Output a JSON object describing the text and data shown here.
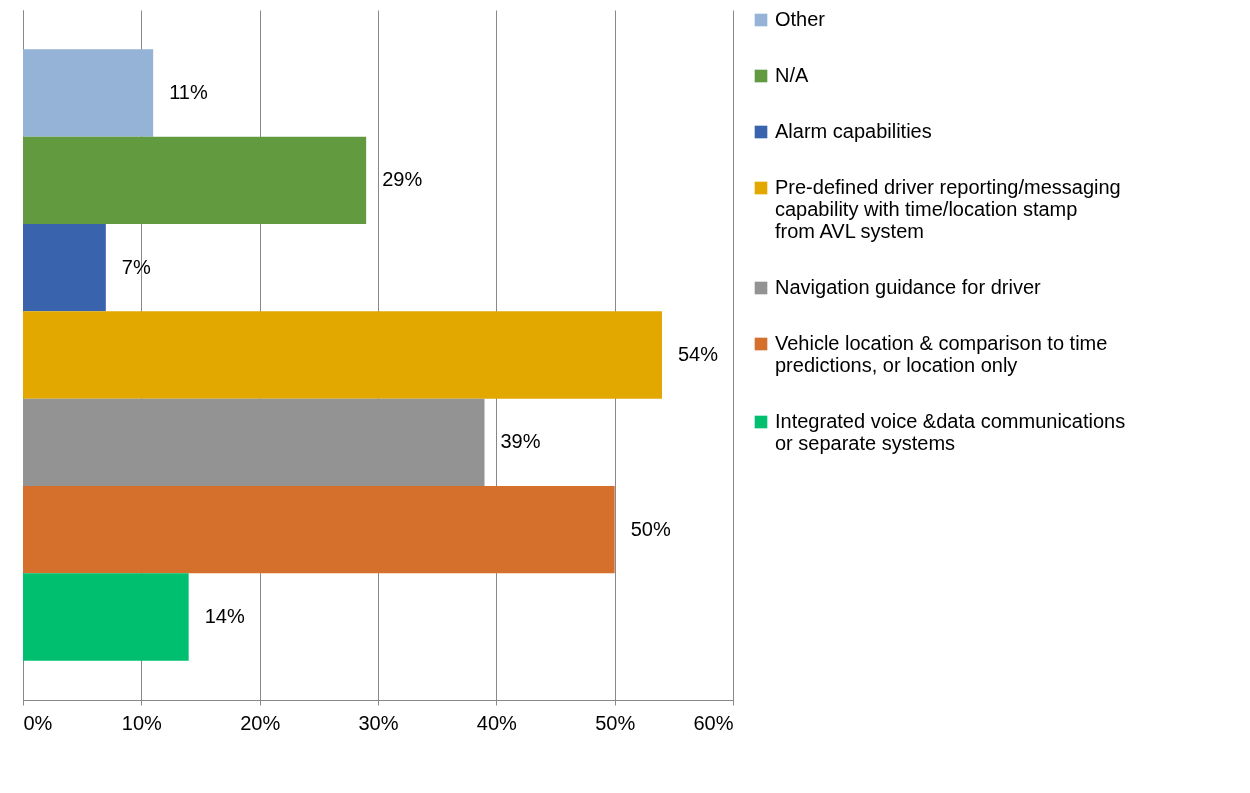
{
  "chart_data": {
    "type": "bar",
    "orientation": "horizontal",
    "categories": [
      null,
      null,
      null,
      null,
      null,
      null,
      null
    ],
    "series": [
      {
        "name": "Other",
        "color": "#95b3d7",
        "values": [
          11,
          null,
          null,
          null,
          null,
          null,
          null
        ],
        "value_labels": [
          "11%",
          null,
          null,
          null,
          null,
          null,
          null
        ]
      },
      {
        "name": "N/A",
        "color": "#629a3f",
        "values": [
          null,
          29,
          null,
          null,
          null,
          null,
          null
        ],
        "value_labels": [
          null,
          "29%",
          null,
          null,
          null,
          null,
          null
        ]
      },
      {
        "name": "Alarm capabilities",
        "color": "#3a63ad",
        "values": [
          null,
          null,
          7,
          null,
          null,
          null,
          null
        ],
        "value_labels": [
          null,
          null,
          "7%",
          null,
          null,
          null,
          null
        ]
      },
      {
        "name": "Pre-defined driver reporting/messaging capability with time/location stamp from AVL system",
        "color": "#e2a800",
        "values": [
          null,
          null,
          null,
          54,
          null,
          null,
          null
        ],
        "value_labels": [
          null,
          null,
          null,
          "54%",
          null,
          null,
          null
        ]
      },
      {
        "name": "Navigation guidance for driver",
        "color": "#939393",
        "values": [
          null,
          null,
          null,
          null,
          39,
          null,
          null
        ],
        "value_labels": [
          null,
          null,
          null,
          null,
          "39%",
          null,
          null
        ]
      },
      {
        "name": "Vehicle location & comparison to time predictions, or location only",
        "color": "#d46f2c",
        "values": [
          null,
          null,
          null,
          null,
          null,
          50,
          null
        ],
        "value_labels": [
          null,
          null,
          null,
          null,
          null,
          "50%",
          null
        ]
      },
      {
        "name": "Integrated voice &data communications or separate systems",
        "color": "#00bf6f",
        "values": [
          null,
          null,
          null,
          null,
          null,
          null,
          14
        ],
        "value_labels": [
          null,
          null,
          null,
          null,
          null,
          null,
          "14%"
        ]
      }
    ],
    "xlim": [
      0,
      60
    ],
    "xticks": [
      {
        "value": 0,
        "label": "0%"
      },
      {
        "value": 10,
        "label": "10%"
      },
      {
        "value": 20,
        "label": "20%"
      },
      {
        "value": 30,
        "label": "30%"
      },
      {
        "value": 40,
        "label": "40%"
      },
      {
        "value": 50,
        "label": "50%"
      },
      {
        "value": 60,
        "label": "60%"
      }
    ],
    "grid": "x",
    "legend": "right",
    "tick_labels": "x"
  }
}
